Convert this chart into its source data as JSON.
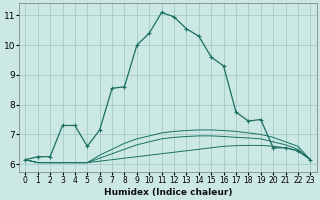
{
  "title": "",
  "xlabel": "Humidex (Indice chaleur)",
  "ylabel": "",
  "bg_color": "#cce8e4",
  "grid_color": "#aacfca",
  "line_color": "#1a7060",
  "xlim": [
    -0.5,
    23.5
  ],
  "ylim": [
    5.75,
    11.4
  ],
  "xticks": [
    0,
    1,
    2,
    3,
    4,
    5,
    6,
    7,
    8,
    9,
    10,
    11,
    12,
    13,
    14,
    15,
    16,
    17,
    18,
    19,
    20,
    21,
    22,
    23
  ],
  "yticks": [
    6,
    7,
    8,
    9,
    10,
    11
  ],
  "main_x": [
    0,
    1,
    2,
    3,
    4,
    5,
    6,
    7,
    8,
    9,
    10,
    11,
    12,
    13,
    14,
    15,
    16,
    17,
    18,
    19,
    20,
    21,
    22,
    23
  ],
  "main_y": [
    6.15,
    6.25,
    6.25,
    7.3,
    7.3,
    6.6,
    7.15,
    8.55,
    8.6,
    10.0,
    10.4,
    11.1,
    10.95,
    10.55,
    10.3,
    9.6,
    9.3,
    7.75,
    7.45,
    7.5,
    6.55,
    6.55,
    6.45,
    6.15
  ],
  "flat1_x": [
    0,
    1,
    2,
    3,
    4,
    5,
    6,
    7,
    8,
    9,
    10,
    11,
    12,
    13,
    14,
    15,
    16,
    17,
    18,
    19,
    20,
    21,
    22,
    23
  ],
  "flat1_y": [
    6.15,
    6.05,
    6.05,
    6.05,
    6.05,
    6.05,
    6.1,
    6.15,
    6.2,
    6.25,
    6.3,
    6.35,
    6.4,
    6.45,
    6.5,
    6.55,
    6.6,
    6.62,
    6.63,
    6.63,
    6.6,
    6.55,
    6.45,
    6.15
  ],
  "flat2_x": [
    0,
    1,
    2,
    3,
    4,
    5,
    6,
    7,
    8,
    9,
    10,
    11,
    12,
    13,
    14,
    15,
    16,
    17,
    18,
    19,
    20,
    21,
    22,
    23
  ],
  "flat2_y": [
    6.15,
    6.05,
    6.05,
    6.05,
    6.05,
    6.05,
    6.2,
    6.35,
    6.5,
    6.65,
    6.75,
    6.85,
    6.9,
    6.93,
    6.95,
    6.95,
    6.93,
    6.9,
    6.88,
    6.85,
    6.75,
    6.65,
    6.5,
    6.15
  ],
  "flat3_x": [
    0,
    1,
    2,
    3,
    4,
    5,
    6,
    7,
    8,
    9,
    10,
    11,
    12,
    13,
    14,
    15,
    16,
    17,
    18,
    19,
    20,
    21,
    22,
    23
  ],
  "flat3_y": [
    6.15,
    6.05,
    6.05,
    6.05,
    6.05,
    6.05,
    6.3,
    6.5,
    6.7,
    6.85,
    6.95,
    7.05,
    7.1,
    7.13,
    7.15,
    7.15,
    7.13,
    7.1,
    7.05,
    7.0,
    6.9,
    6.75,
    6.6,
    6.15
  ]
}
